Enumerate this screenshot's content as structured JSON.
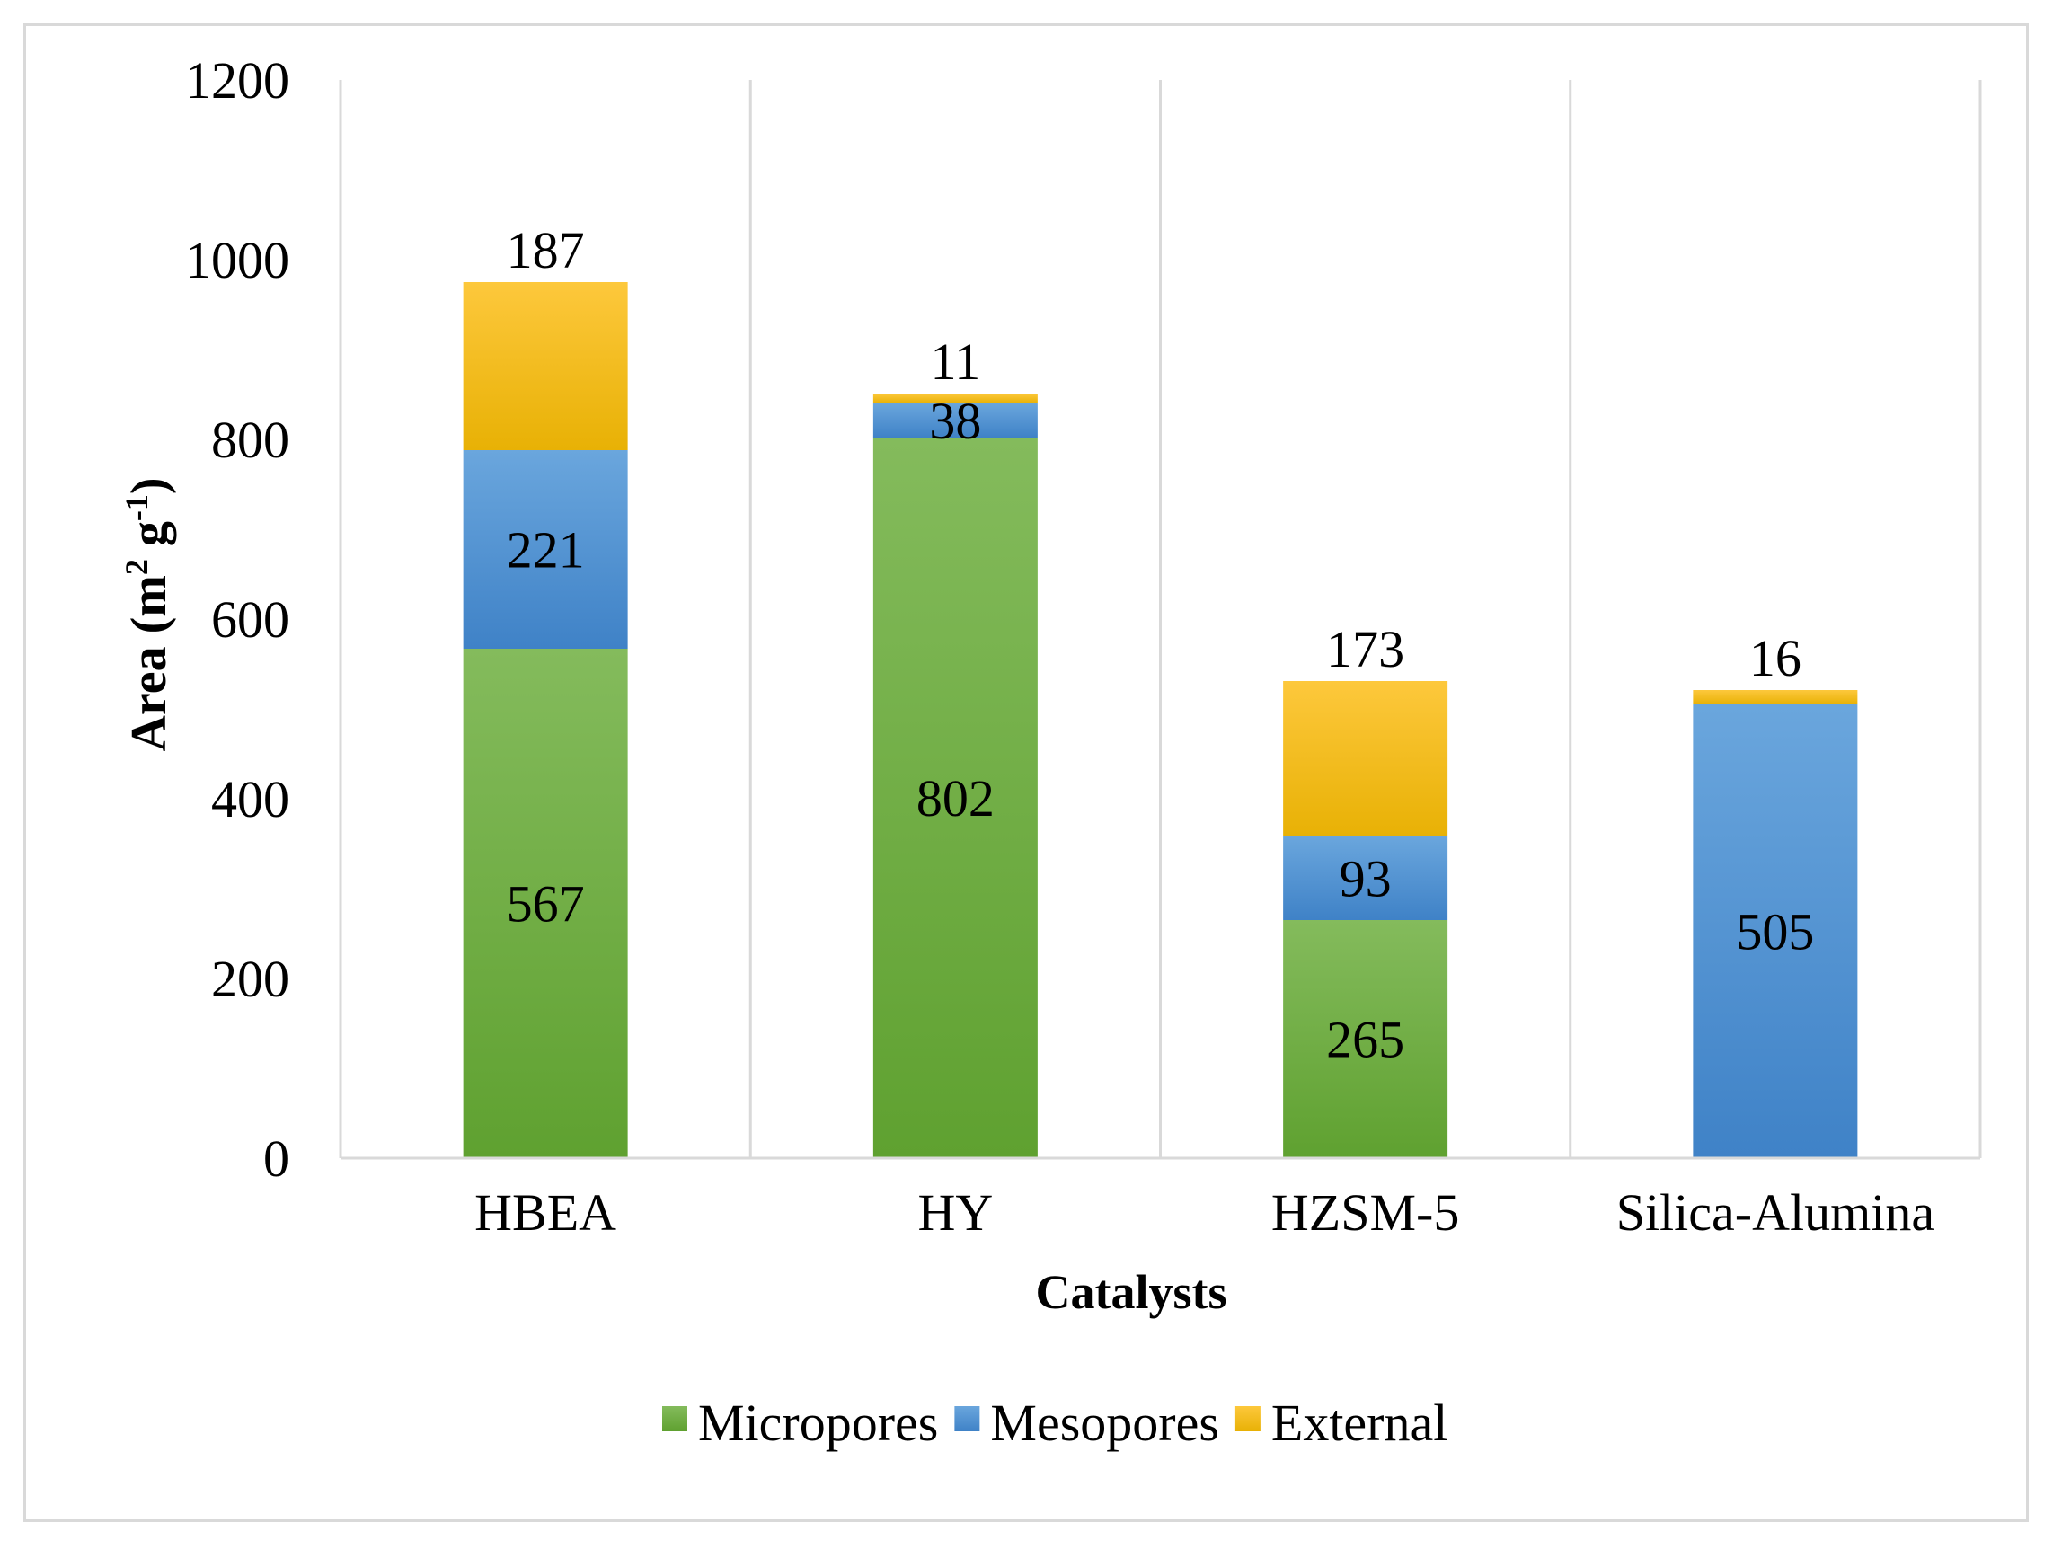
{
  "chart_data": {
    "type": "bar",
    "stacked": true,
    "title": "",
    "xlabel": "Catalysts",
    "ylabel": "Area (m² g⁻¹)",
    "ylabel_parts": {
      "base": "Area (m",
      "sup1": "2",
      "mid": " g",
      "sup2": "-1",
      "end": ")"
    },
    "ylim": [
      0,
      1200
    ],
    "yticks": [
      0,
      200,
      400,
      600,
      800,
      1000,
      1200
    ],
    "grid": "vertical separators between categories",
    "legend_position": "bottom-center",
    "categories": [
      "HBEA",
      "HY",
      "HZSM-5",
      "Silica-Alumina"
    ],
    "series": [
      {
        "name": "Micropores",
        "color_top": "#84bb5c",
        "color_bottom": "#5fa130",
        "values": [
          567,
          802,
          265,
          0
        ],
        "labels": [
          "567",
          "802",
          "265",
          ""
        ]
      },
      {
        "name": "Mesopores",
        "color_top": "#6aa6dd",
        "color_bottom": "#3f82c7",
        "values": [
          221,
          38,
          93,
          505
        ],
        "labels": [
          "221",
          "38",
          "93",
          "505"
        ]
      },
      {
        "name": "External",
        "color_top": "#fdc83c",
        "color_bottom": "#e8b105",
        "values": [
          187,
          11,
          173,
          16
        ],
        "labels": [
          "187",
          "11",
          "173",
          "16"
        ]
      }
    ]
  }
}
